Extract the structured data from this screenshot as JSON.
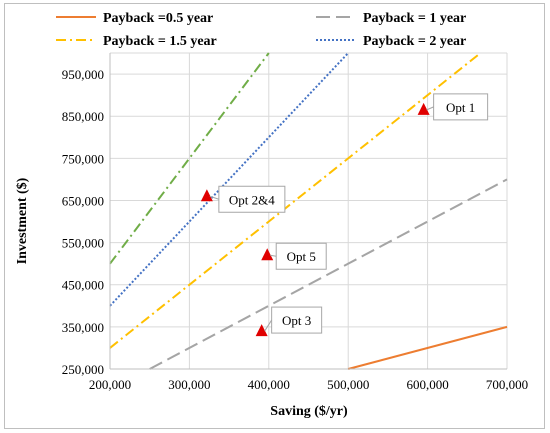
{
  "chart_data": {
    "type": "line",
    "title": "",
    "xlabel": "Saving ($/yr)",
    "ylabel": "Investment ($)",
    "xlim": [
      200000,
      700000
    ],
    "ylim": [
      250000,
      1000000
    ],
    "xticks": [
      "200,000",
      "300,000",
      "400,000",
      "500,000",
      "600,000",
      "700,000"
    ],
    "yticks": [
      "250,000",
      "350,000",
      "450,000",
      "550,000",
      "650,000",
      "750,000",
      "850,000",
      "950,000"
    ],
    "x_tick_values": [
      200000,
      300000,
      400000,
      500000,
      600000,
      700000
    ],
    "y_tick_values": [
      250000,
      350000,
      450000,
      550000,
      650000,
      750000,
      850000,
      950000
    ],
    "grid": "vertical and horizontal major gridlines",
    "legend_position": "top",
    "series": [
      {
        "name": "Payback =0.5 year",
        "payback_years": 0.5,
        "color": "#ED7D31",
        "dash": "solid",
        "x": [
          500000,
          700000
        ],
        "y": [
          250000,
          350000
        ]
      },
      {
        "name": "Payback = 1 year",
        "payback_years": 1,
        "color": "#A5A5A5",
        "dash": "long-dash",
        "x": [
          250000,
          700000
        ],
        "y": [
          250000,
          700000
        ]
      },
      {
        "name": "Payback = 1.5 year",
        "payback_years": 1.5,
        "color": "#FFC000",
        "dash": "dash-dot",
        "x": [
          200000,
          666667
        ],
        "y": [
          300000,
          1000000
        ]
      },
      {
        "name": "Payback = 2 year",
        "payback_years": 2,
        "color": "#4472C4",
        "dash": "dotted",
        "x": [
          200000,
          500000
        ],
        "y": [
          400000,
          1000000
        ]
      },
      {
        "name": "",
        "payback_years": 2.5,
        "color": "#70AD47",
        "dash": "dash-dot",
        "x": [
          200000,
          400000
        ],
        "y": [
          500000,
          1000000
        ]
      }
    ],
    "points": [
      {
        "label": "Opt 1",
        "x": 595000,
        "y": 865000
      },
      {
        "label": "Opt 2&4",
        "x": 322000,
        "y": 660000
      },
      {
        "label": "Opt 5",
        "x": 398000,
        "y": 520000
      },
      {
        "label": "Opt 3",
        "x": 391000,
        "y": 340000
      }
    ],
    "marker_color": "#E00000"
  }
}
